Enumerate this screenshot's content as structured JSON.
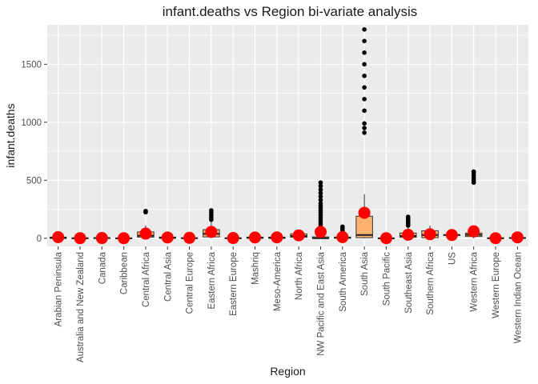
{
  "chart_data": {
    "type": "boxplot",
    "title": "infant.deaths vs Region bi-variate analysis",
    "xlabel": "Region",
    "ylabel": "infant.deaths",
    "ylim": [
      -70,
      1840
    ],
    "yticks": [
      0,
      500,
      1000,
      1500
    ],
    "grid": true,
    "colors": {
      "panel": "#EBEBEB",
      "grid": "#FFFFFF",
      "box_fill": "#FFB16E",
      "mean_point": "#FF0000",
      "outlier": "#000000"
    },
    "categories": [
      "Arabian Peninsula",
      "Australia and New Zealand",
      "Canada",
      "Caribbean",
      "Central Africa",
      "Central Asia",
      "Central Europe",
      "Eastern Africa",
      "Eastern Europe",
      "Mashriq",
      "Meso-America",
      "North Africa",
      "NW Pacific and East Asia",
      "South America",
      "South Asia",
      "South Pacific",
      "Southeast Asia",
      "Southern Africa",
      "US",
      "Western Africa",
      "Western Europe",
      "Western Indian Ocean"
    ],
    "boxes": [
      {
        "q1": 0,
        "median": 2,
        "q3": 10,
        "lower": 0,
        "upper": 25,
        "mean": 10,
        "outliers": [
          28,
          32
        ]
      },
      {
        "q1": 0,
        "median": 1,
        "q3": 1,
        "lower": 0,
        "upper": 1,
        "mean": 1,
        "outliers": []
      },
      {
        "q1": 1,
        "median": 2,
        "q3": 2,
        "lower": 1,
        "upper": 2,
        "mean": 2,
        "outliers": []
      },
      {
        "q1": 0,
        "median": 0,
        "q3": 1,
        "lower": 0,
        "upper": 2,
        "mean": 1,
        "outliers": []
      },
      {
        "q1": 10,
        "median": 22,
        "q3": 55,
        "lower": 0,
        "upper": 110,
        "mean": 40,
        "outliers": [
          225,
          230,
          235
        ]
      },
      {
        "q1": 1,
        "median": 4,
        "q3": 10,
        "lower": 0,
        "upper": 18,
        "mean": 7,
        "outliers": []
      },
      {
        "q1": 0,
        "median": 1,
        "q3": 4,
        "lower": 0,
        "upper": 10,
        "mean": 4,
        "outliers": [
          15,
          20,
          25
        ]
      },
      {
        "q1": 12,
        "median": 38,
        "q3": 75,
        "lower": 0,
        "upper": 140,
        "mean": 55,
        "outliers": [
          160,
          180,
          200,
          220,
          240
        ]
      },
      {
        "q1": 0,
        "median": 1,
        "q3": 2,
        "lower": 0,
        "upper": 4,
        "mean": 2,
        "outliers": []
      },
      {
        "q1": 1,
        "median": 4,
        "q3": 10,
        "lower": 0,
        "upper": 20,
        "mean": 7,
        "outliers": []
      },
      {
        "q1": 0,
        "median": 3,
        "q3": 10,
        "lower": 0,
        "upper": 22,
        "mean": 8,
        "outliers": [
          30,
          40
        ]
      },
      {
        "q1": 8,
        "median": 20,
        "q3": 38,
        "lower": 0,
        "upper": 55,
        "mean": 25,
        "outliers": []
      },
      {
        "q1": 0,
        "median": 1,
        "q3": 12,
        "lower": 0,
        "upper": 28,
        "mean": 55,
        "outliers": [
          40,
          60,
          80,
          100,
          120,
          140,
          160,
          180,
          200,
          220,
          240,
          260,
          280,
          300,
          330,
          360,
          390,
          420,
          450,
          480
        ]
      },
      {
        "q1": 1,
        "median": 4,
        "q3": 10,
        "lower": 0,
        "upper": 22,
        "mean": 10,
        "outliers": [
          40,
          55,
          70,
          85,
          100
        ]
      },
      {
        "q1": 5,
        "median": 28,
        "q3": 190,
        "lower": 0,
        "upper": 380,
        "mean": 220,
        "outliers": [
          910,
          950,
          990,
          1100,
          1200,
          1300,
          1400,
          1500,
          1600,
          1700,
          1800
        ]
      },
      {
        "q1": 0,
        "median": 0,
        "q3": 1,
        "lower": 0,
        "upper": 2,
        "mean": 1,
        "outliers": []
      },
      {
        "q1": 8,
        "median": 20,
        "q3": 45,
        "lower": 0,
        "upper": 90,
        "mean": 30,
        "outliers": [
          110,
          125,
          140,
          155,
          170,
          185
        ]
      },
      {
        "q1": 5,
        "median": 28,
        "q3": 65,
        "lower": 0,
        "upper": 110,
        "mean": 35,
        "outliers": []
      },
      {
        "q1": 25,
        "median": 28,
        "q3": 30,
        "lower": 22,
        "upper": 35,
        "mean": 28,
        "outliers": []
      },
      {
        "q1": 15,
        "median": 30,
        "q3": 45,
        "lower": 0,
        "upper": 80,
        "mean": 60,
        "outliers": [
          480,
          500,
          520,
          540,
          560,
          575
        ]
      },
      {
        "q1": 0,
        "median": 1,
        "q3": 2,
        "lower": 0,
        "upper": 3,
        "mean": 1,
        "outliers": []
      },
      {
        "q1": 0,
        "median": 2,
        "q3": 5,
        "lower": 0,
        "upper": 10,
        "mean": 8,
        "outliers": []
      }
    ]
  }
}
